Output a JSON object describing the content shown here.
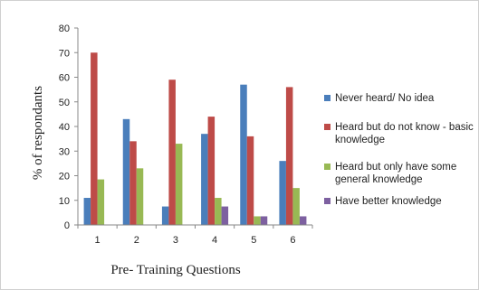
{
  "chart_data": {
    "type": "bar",
    "title": "",
    "xlabel": "Pre- Training Questions",
    "ylabel": "% of respondants",
    "ylim": [
      0,
      80
    ],
    "yticks": [
      0,
      10,
      20,
      30,
      40,
      50,
      60,
      70,
      80
    ],
    "categories": [
      "1",
      "2",
      "3",
      "4",
      "5",
      "6"
    ],
    "grid": false,
    "legend_position": "right",
    "series": [
      {
        "name": "Never heard/ No idea",
        "color": "#4a7ebb",
        "values": [
          11,
          43,
          7.5,
          37,
          57,
          26
        ]
      },
      {
        "name": "Heard but do not know - basic knowledge",
        "color": "#be4b48",
        "values": [
          70,
          34,
          59,
          44,
          36,
          56
        ]
      },
      {
        "name": " Heard but only have some general knowledge",
        "color": "#98b954",
        "values": [
          18.5,
          23,
          33,
          11,
          3.5,
          15
        ]
      },
      {
        "name": "Have better knowledge",
        "color": "#7d60a0",
        "values": [
          0,
          0,
          0,
          7.5,
          3.5,
          3.5
        ]
      }
    ]
  }
}
